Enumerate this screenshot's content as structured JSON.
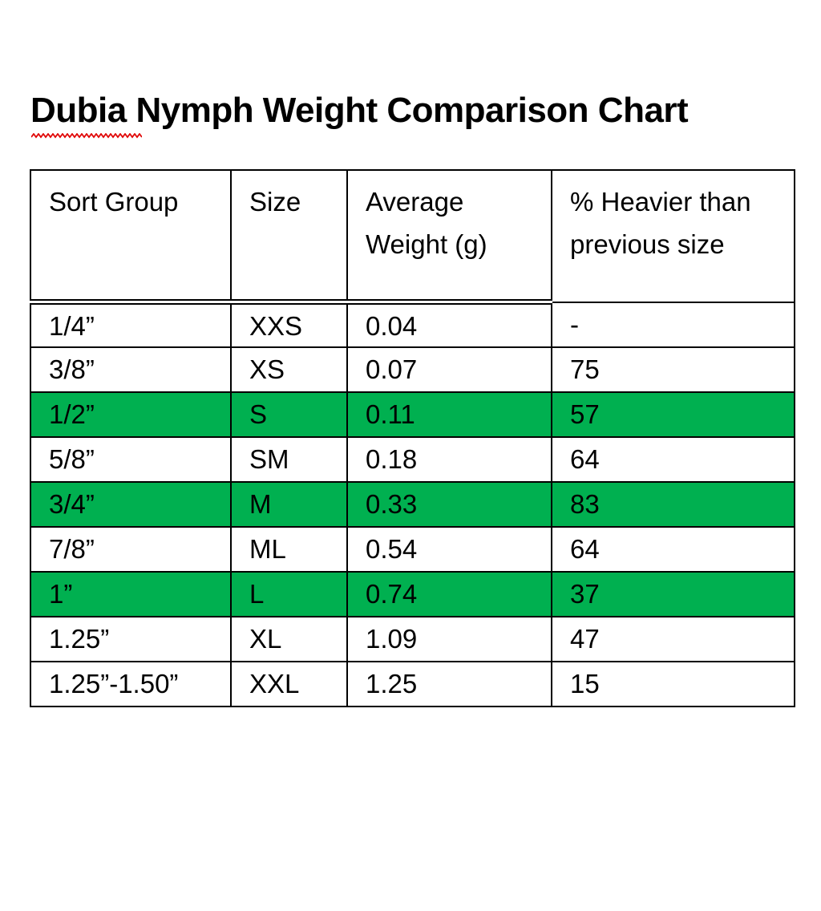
{
  "title": {
    "misspelled_word": "Dubia",
    "rest": " Nymph Weight Comparison Chart",
    "full": "Dubia Nymph Weight Comparison Chart"
  },
  "colors": {
    "highlight_green": "#00B050",
    "spellcheck_red": "#E00000",
    "border_black": "#000000"
  },
  "table": {
    "headers": [
      "Sort Group",
      "Size",
      "Average Weight (g)",
      "% Heavier than previous size"
    ],
    "rows": [
      {
        "cells": [
          "1/4”",
          "XXS",
          "0.04",
          "-"
        ],
        "highlighted": false
      },
      {
        "cells": [
          "3/8”",
          "XS",
          "0.07",
          "75"
        ],
        "highlighted": false
      },
      {
        "cells": [
          "1/2”",
          "S",
          "0.11",
          "57"
        ],
        "highlighted": true
      },
      {
        "cells": [
          "5/8”",
          "SM",
          "0.18",
          "64"
        ],
        "highlighted": false
      },
      {
        "cells": [
          "3/4”",
          "M",
          "0.33",
          "83"
        ],
        "highlighted": true
      },
      {
        "cells": [
          "7/8”",
          "ML",
          "0.54",
          "64"
        ],
        "highlighted": false
      },
      {
        "cells": [
          "1”",
          "L",
          "0.74",
          "37"
        ],
        "highlighted": true
      },
      {
        "cells": [
          "1.25”",
          "XL",
          "1.09",
          "47"
        ],
        "highlighted": false
      },
      {
        "cells": [
          "1.25”-1.50”",
          "XXL",
          "1.25",
          "15"
        ],
        "highlighted": false
      }
    ]
  }
}
